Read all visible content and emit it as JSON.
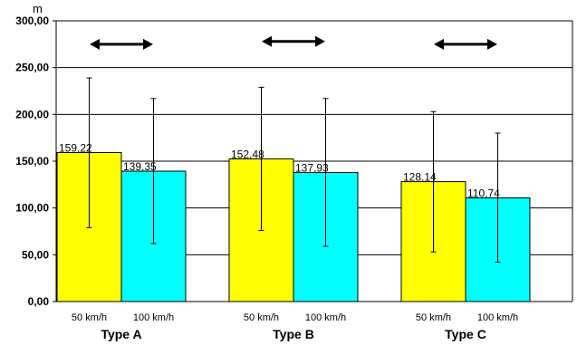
{
  "chart_data": {
    "type": "bar",
    "y_unit": "m",
    "ylim": [
      0,
      300
    ],
    "yticks": [
      "0,00",
      "50,00",
      "100,00",
      "150,00",
      "200,00",
      "250,00",
      "300,00"
    ],
    "ytick_values": [
      0,
      50,
      100,
      150,
      200,
      250,
      300
    ],
    "grid": true,
    "groups": [
      {
        "name": "Type A",
        "bars": [
          {
            "sub_label": "50 km/h",
            "value": 159.22,
            "value_label": "159,22",
            "err_low": 79,
            "err_high": 239,
            "color": "#ffff00"
          },
          {
            "sub_label": "100 km/h",
            "value": 139.35,
            "value_label": "139,35",
            "err_low": 62,
            "err_high": 217,
            "color": "#00ffff"
          }
        ]
      },
      {
        "name": "Type B",
        "bars": [
          {
            "sub_label": "50 km/h",
            "value": 152.48,
            "value_label": "152,48",
            "err_low": 76,
            "err_high": 229,
            "color": "#ffff00"
          },
          {
            "sub_label": "100 km/h",
            "value": 137.93,
            "value_label": "137,93",
            "err_low": 59,
            "err_high": 217,
            "color": "#00ffff"
          }
        ]
      },
      {
        "name": "Type C",
        "bars": [
          {
            "sub_label": "50 km/h",
            "value": 128.14,
            "value_label": "128,14",
            "err_low": 53,
            "err_high": 203,
            "color": "#ffff00"
          },
          {
            "sub_label": "100 km/h",
            "value": 110.74,
            "value_label": "110,74",
            "err_low": 42,
            "err_high": 180,
            "color": "#00ffff"
          }
        ]
      }
    ],
    "annotations": [
      {
        "type": "double-arrow",
        "group": "Type A",
        "y": 275
      },
      {
        "type": "double-arrow",
        "group": "Type B",
        "y": 278
      },
      {
        "type": "double-arrow",
        "group": "Type C",
        "y": 275
      }
    ]
  }
}
